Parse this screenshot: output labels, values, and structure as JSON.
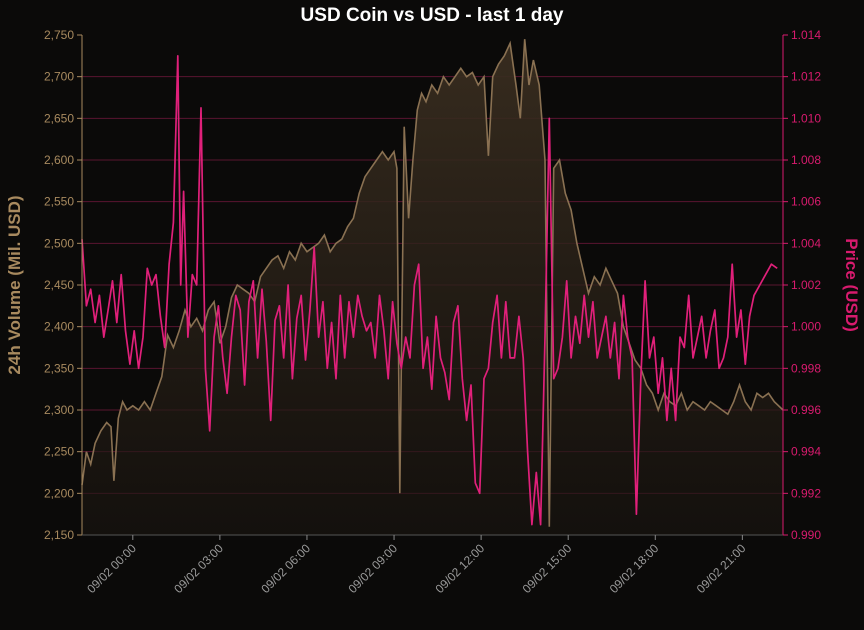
{
  "colors": {
    "background": "#0b0a09",
    "volume_line": "#8a7152",
    "volume_fill": "#2a2219",
    "price_line": "#e0207a",
    "grid": "#5a1530",
    "left_axis": "#a88a5f",
    "right_axis": "#d81b6e",
    "x_ticks": "#9a9a9a",
    "title": "#ffffff"
  },
  "chart_data": {
    "type": "line",
    "title": "USD Coin vs USD - last 1 day",
    "xlabel": "",
    "ylabel_left": "24h Volume (Mil. USD)",
    "ylabel_right": "Price (USD)",
    "x_range": [
      -1.75,
      22.4
    ],
    "ylim_left": [
      2150,
      2750
    ],
    "ylim_right": [
      0.99,
      1.014
    ],
    "yticks_left": [
      "2,150",
      "2,200",
      "2,250",
      "2,300",
      "2,350",
      "2,400",
      "2,450",
      "2,500",
      "2,550",
      "2,600",
      "2,650",
      "2,700",
      "2,750"
    ],
    "yticks_right": [
      "0.990",
      "0.992",
      "0.994",
      "0.996",
      "0.998",
      "1.000",
      "1.002",
      "1.004",
      "1.006",
      "1.008",
      "1.010",
      "1.012",
      "1.014"
    ],
    "x_ticks": [
      {
        "label": "09/02 00:00",
        "hour": 0
      },
      {
        "label": "09/02 03:00",
        "hour": 3
      },
      {
        "label": "09/02 06:00",
        "hour": 6
      },
      {
        "label": "09/02 09:00",
        "hour": 9
      },
      {
        "label": "09/02 12:00",
        "hour": 12
      },
      {
        "label": "09/02 15:00",
        "hour": 15
      },
      {
        "label": "09/02 18:00",
        "hour": 18
      },
      {
        "label": "09/02 21:00",
        "hour": 21
      }
    ],
    "grid": "horizontal",
    "series": [
      {
        "name": "24h Volume (Mil. USD)",
        "axis": "left",
        "area": true,
        "points": [
          [
            -1.75,
            2210
          ],
          [
            -1.6,
            2250
          ],
          [
            -1.45,
            2235
          ],
          [
            -1.3,
            2260
          ],
          [
            -1.1,
            2275
          ],
          [
            -0.9,
            2285
          ],
          [
            -0.75,
            2280
          ],
          [
            -0.65,
            2215
          ],
          [
            -0.5,
            2290
          ],
          [
            -0.35,
            2310
          ],
          [
            -0.2,
            2300
          ],
          [
            0,
            2305
          ],
          [
            0.2,
            2300
          ],
          [
            0.4,
            2310
          ],
          [
            0.6,
            2300
          ],
          [
            0.8,
            2320
          ],
          [
            1.0,
            2340
          ],
          [
            1.2,
            2390
          ],
          [
            1.4,
            2375
          ],
          [
            1.6,
            2395
          ],
          [
            1.8,
            2420
          ],
          [
            2.0,
            2400
          ],
          [
            2.2,
            2410
          ],
          [
            2.4,
            2395
          ],
          [
            2.6,
            2420
          ],
          [
            2.8,
            2430
          ],
          [
            3.0,
            2380
          ],
          [
            3.2,
            2400
          ],
          [
            3.4,
            2435
          ],
          [
            3.6,
            2450
          ],
          [
            3.8,
            2445
          ],
          [
            4.0,
            2440
          ],
          [
            4.2,
            2430
          ],
          [
            4.4,
            2460
          ],
          [
            4.6,
            2470
          ],
          [
            4.8,
            2480
          ],
          [
            5.0,
            2485
          ],
          [
            5.2,
            2470
          ],
          [
            5.4,
            2490
          ],
          [
            5.6,
            2480
          ],
          [
            5.8,
            2500
          ],
          [
            6.0,
            2490
          ],
          [
            6.2,
            2495
          ],
          [
            6.4,
            2500
          ],
          [
            6.6,
            2510
          ],
          [
            6.8,
            2490
          ],
          [
            7.0,
            2500
          ],
          [
            7.2,
            2505
          ],
          [
            7.4,
            2520
          ],
          [
            7.6,
            2530
          ],
          [
            7.8,
            2560
          ],
          [
            8.0,
            2580
          ],
          [
            8.2,
            2590
          ],
          [
            8.4,
            2600
          ],
          [
            8.6,
            2610
          ],
          [
            8.8,
            2600
          ],
          [
            9.0,
            2610
          ],
          [
            9.1,
            2590
          ],
          [
            9.2,
            2200
          ],
          [
            9.35,
            2640
          ],
          [
            9.5,
            2530
          ],
          [
            9.65,
            2600
          ],
          [
            9.8,
            2660
          ],
          [
            9.95,
            2680
          ],
          [
            10.1,
            2670
          ],
          [
            10.3,
            2690
          ],
          [
            10.5,
            2680
          ],
          [
            10.7,
            2700
          ],
          [
            10.9,
            2690
          ],
          [
            11.1,
            2700
          ],
          [
            11.3,
            2710
          ],
          [
            11.5,
            2700
          ],
          [
            11.7,
            2705
          ],
          [
            11.9,
            2690
          ],
          [
            12.1,
            2700
          ],
          [
            12.25,
            2605
          ],
          [
            12.4,
            2700
          ],
          [
            12.6,
            2715
          ],
          [
            12.8,
            2725
          ],
          [
            13.0,
            2740
          ],
          [
            13.2,
            2690
          ],
          [
            13.35,
            2650
          ],
          [
            13.5,
            2745
          ],
          [
            13.65,
            2690
          ],
          [
            13.8,
            2720
          ],
          [
            14.0,
            2690
          ],
          [
            14.2,
            2600
          ],
          [
            14.35,
            2160
          ],
          [
            14.5,
            2590
          ],
          [
            14.7,
            2600
          ],
          [
            14.9,
            2560
          ],
          [
            15.1,
            2540
          ],
          [
            15.3,
            2500
          ],
          [
            15.5,
            2470
          ],
          [
            15.7,
            2440
          ],
          [
            15.9,
            2460
          ],
          [
            16.1,
            2450
          ],
          [
            16.3,
            2470
          ],
          [
            16.5,
            2455
          ],
          [
            16.7,
            2440
          ],
          [
            16.9,
            2400
          ],
          [
            17.1,
            2380
          ],
          [
            17.3,
            2360
          ],
          [
            17.5,
            2350
          ],
          [
            17.7,
            2330
          ],
          [
            17.9,
            2320
          ],
          [
            18.1,
            2300
          ],
          [
            18.3,
            2320
          ],
          [
            18.5,
            2310
          ],
          [
            18.7,
            2305
          ],
          [
            18.9,
            2320
          ],
          [
            19.1,
            2300
          ],
          [
            19.3,
            2310
          ],
          [
            19.5,
            2305
          ],
          [
            19.7,
            2300
          ],
          [
            19.9,
            2310
          ],
          [
            20.1,
            2305
          ],
          [
            20.3,
            2300
          ],
          [
            20.5,
            2295
          ],
          [
            20.7,
            2310
          ],
          [
            20.9,
            2330
          ],
          [
            21.1,
            2310
          ],
          [
            21.3,
            2300
          ],
          [
            21.5,
            2320
          ],
          [
            21.7,
            2315
          ],
          [
            21.9,
            2320
          ],
          [
            22.1,
            2310
          ],
          [
            22.4,
            2300
          ]
        ]
      },
      {
        "name": "Price (USD)",
        "axis": "right",
        "area": false,
        "points": [
          [
            -1.75,
            1.0042
          ],
          [
            -1.6,
            1.001
          ],
          [
            -1.45,
            1.0018
          ],
          [
            -1.3,
            1.0002
          ],
          [
            -1.15,
            1.0015
          ],
          [
            -1.0,
            0.9995
          ],
          [
            -0.85,
            1.0008
          ],
          [
            -0.7,
            1.0022
          ],
          [
            -0.55,
            1.0002
          ],
          [
            -0.4,
            1.0025
          ],
          [
            -0.25,
            0.9998
          ],
          [
            -0.1,
            0.9982
          ],
          [
            0.05,
            0.9998
          ],
          [
            0.2,
            0.998
          ],
          [
            0.35,
            0.9995
          ],
          [
            0.5,
            1.0028
          ],
          [
            0.65,
            1.002
          ],
          [
            0.8,
            1.0025
          ],
          [
            0.95,
            1.0005
          ],
          [
            1.1,
            0.999
          ],
          [
            1.25,
            1.003
          ],
          [
            1.4,
            1.005
          ],
          [
            1.55,
            1.013
          ],
          [
            1.65,
            1.002
          ],
          [
            1.75,
            1.0065
          ],
          [
            1.9,
            0.9995
          ],
          [
            2.05,
            1.0025
          ],
          [
            2.2,
            1.002
          ],
          [
            2.35,
            1.0105
          ],
          [
            2.5,
            0.998
          ],
          [
            2.65,
            0.995
          ],
          [
            2.8,
            0.9995
          ],
          [
            2.95,
            1.001
          ],
          [
            3.1,
            0.9985
          ],
          [
            3.25,
            0.9968
          ],
          [
            3.4,
            0.9995
          ],
          [
            3.55,
            1.0015
          ],
          [
            3.7,
            1.0008
          ],
          [
            3.85,
            0.9972
          ],
          [
            4.0,
            1.0012
          ],
          [
            4.15,
            1.0022
          ],
          [
            4.3,
            0.9985
          ],
          [
            4.45,
            1.0018
          ],
          [
            4.6,
            0.9993
          ],
          [
            4.75,
            0.9955
          ],
          [
            4.9,
            1.0003
          ],
          [
            5.05,
            1.001
          ],
          [
            5.2,
            0.9985
          ],
          [
            5.35,
            1.002
          ],
          [
            5.5,
            0.9975
          ],
          [
            5.65,
            1.0004
          ],
          [
            5.8,
            1.0015
          ],
          [
            5.95,
            0.9984
          ],
          [
            6.1,
            1.0008
          ],
          [
            6.25,
            1.0038
          ],
          [
            6.4,
            0.9995
          ],
          [
            6.55,
            1.0012
          ],
          [
            6.7,
            0.998
          ],
          [
            6.85,
            1.0002
          ],
          [
            7.0,
            0.9975
          ],
          [
            7.15,
            1.0015
          ],
          [
            7.3,
            0.9985
          ],
          [
            7.45,
            1.0012
          ],
          [
            7.6,
            0.9995
          ],
          [
            7.75,
            1.0015
          ],
          [
            7.9,
            1.0005
          ],
          [
            8.05,
            0.9998
          ],
          [
            8.2,
            1.0002
          ],
          [
            8.35,
            0.9985
          ],
          [
            8.5,
            1.0015
          ],
          [
            8.65,
            0.9998
          ],
          [
            8.8,
            0.9975
          ],
          [
            8.95,
            1.0012
          ],
          [
            9.1,
            0.9992
          ],
          [
            9.25,
            0.998
          ],
          [
            9.4,
            0.9995
          ],
          [
            9.55,
            0.9985
          ],
          [
            9.7,
            1.002
          ],
          [
            9.85,
            1.003
          ],
          [
            10.0,
            0.998
          ],
          [
            10.15,
            0.9995
          ],
          [
            10.3,
            0.997
          ],
          [
            10.45,
            1.0005
          ],
          [
            10.6,
            0.9985
          ],
          [
            10.75,
            0.9978
          ],
          [
            10.9,
            0.9965
          ],
          [
            11.05,
            1.0002
          ],
          [
            11.2,
            1.001
          ],
          [
            11.35,
            0.9975
          ],
          [
            11.5,
            0.9955
          ],
          [
            11.65,
            0.9972
          ],
          [
            11.8,
            0.9925
          ],
          [
            11.95,
            0.992
          ],
          [
            12.1,
            0.9975
          ],
          [
            12.25,
            0.998
          ],
          [
            12.4,
            1.0002
          ],
          [
            12.55,
            1.0015
          ],
          [
            12.7,
            0.9985
          ],
          [
            12.85,
            1.0012
          ],
          [
            13.0,
            0.9985
          ],
          [
            13.15,
            0.9985
          ],
          [
            13.3,
            1.0005
          ],
          [
            13.45,
            0.9985
          ],
          [
            13.6,
            0.994
          ],
          [
            13.75,
            0.9905
          ],
          [
            13.9,
            0.993
          ],
          [
            14.05,
            0.9905
          ],
          [
            14.2,
            0.9995
          ],
          [
            14.35,
            1.01
          ],
          [
            14.5,
            0.9975
          ],
          [
            14.65,
            0.998
          ],
          [
            14.8,
            0.9995
          ],
          [
            14.95,
            1.0022
          ],
          [
            15.1,
            0.9985
          ],
          [
            15.25,
            1.0005
          ],
          [
            15.4,
            0.9992
          ],
          [
            15.55,
            1.0015
          ],
          [
            15.7,
            0.9995
          ],
          [
            15.85,
            1.0012
          ],
          [
            16.0,
            0.9985
          ],
          [
            16.15,
            0.9995
          ],
          [
            16.3,
            1.0005
          ],
          [
            16.45,
            0.9985
          ],
          [
            16.6,
            1.0002
          ],
          [
            16.75,
            0.9975
          ],
          [
            16.9,
            1.0015
          ],
          [
            17.05,
            0.9995
          ],
          [
            17.2,
            0.9985
          ],
          [
            17.35,
            0.991
          ],
          [
            17.5,
            0.9975
          ],
          [
            17.65,
            1.0022
          ],
          [
            17.8,
            0.9985
          ],
          [
            17.95,
            0.9995
          ],
          [
            18.1,
            0.9968
          ],
          [
            18.25,
            0.9985
          ],
          [
            18.4,
            0.9955
          ],
          [
            18.55,
            0.998
          ],
          [
            18.7,
            0.9955
          ],
          [
            18.85,
            0.9995
          ],
          [
            19.0,
            0.999
          ],
          [
            19.15,
            1.0015
          ],
          [
            19.3,
            0.9985
          ],
          [
            19.45,
            0.9995
          ],
          [
            19.6,
            1.0005
          ],
          [
            19.75,
            0.9985
          ],
          [
            19.9,
            0.9998
          ],
          [
            20.05,
            1.0008
          ],
          [
            20.2,
            0.998
          ],
          [
            20.35,
            0.9985
          ],
          [
            20.5,
            0.9995
          ],
          [
            20.65,
            1.003
          ],
          [
            20.8,
            0.9995
          ],
          [
            20.95,
            1.0008
          ],
          [
            21.1,
            0.9982
          ],
          [
            21.25,
            1.0005
          ],
          [
            21.4,
            1.0015
          ],
          [
            21.6,
            1.002
          ],
          [
            21.8,
            1.0025
          ],
          [
            22.0,
            1.003
          ],
          [
            22.2,
            1.0028
          ]
        ]
      }
    ]
  }
}
